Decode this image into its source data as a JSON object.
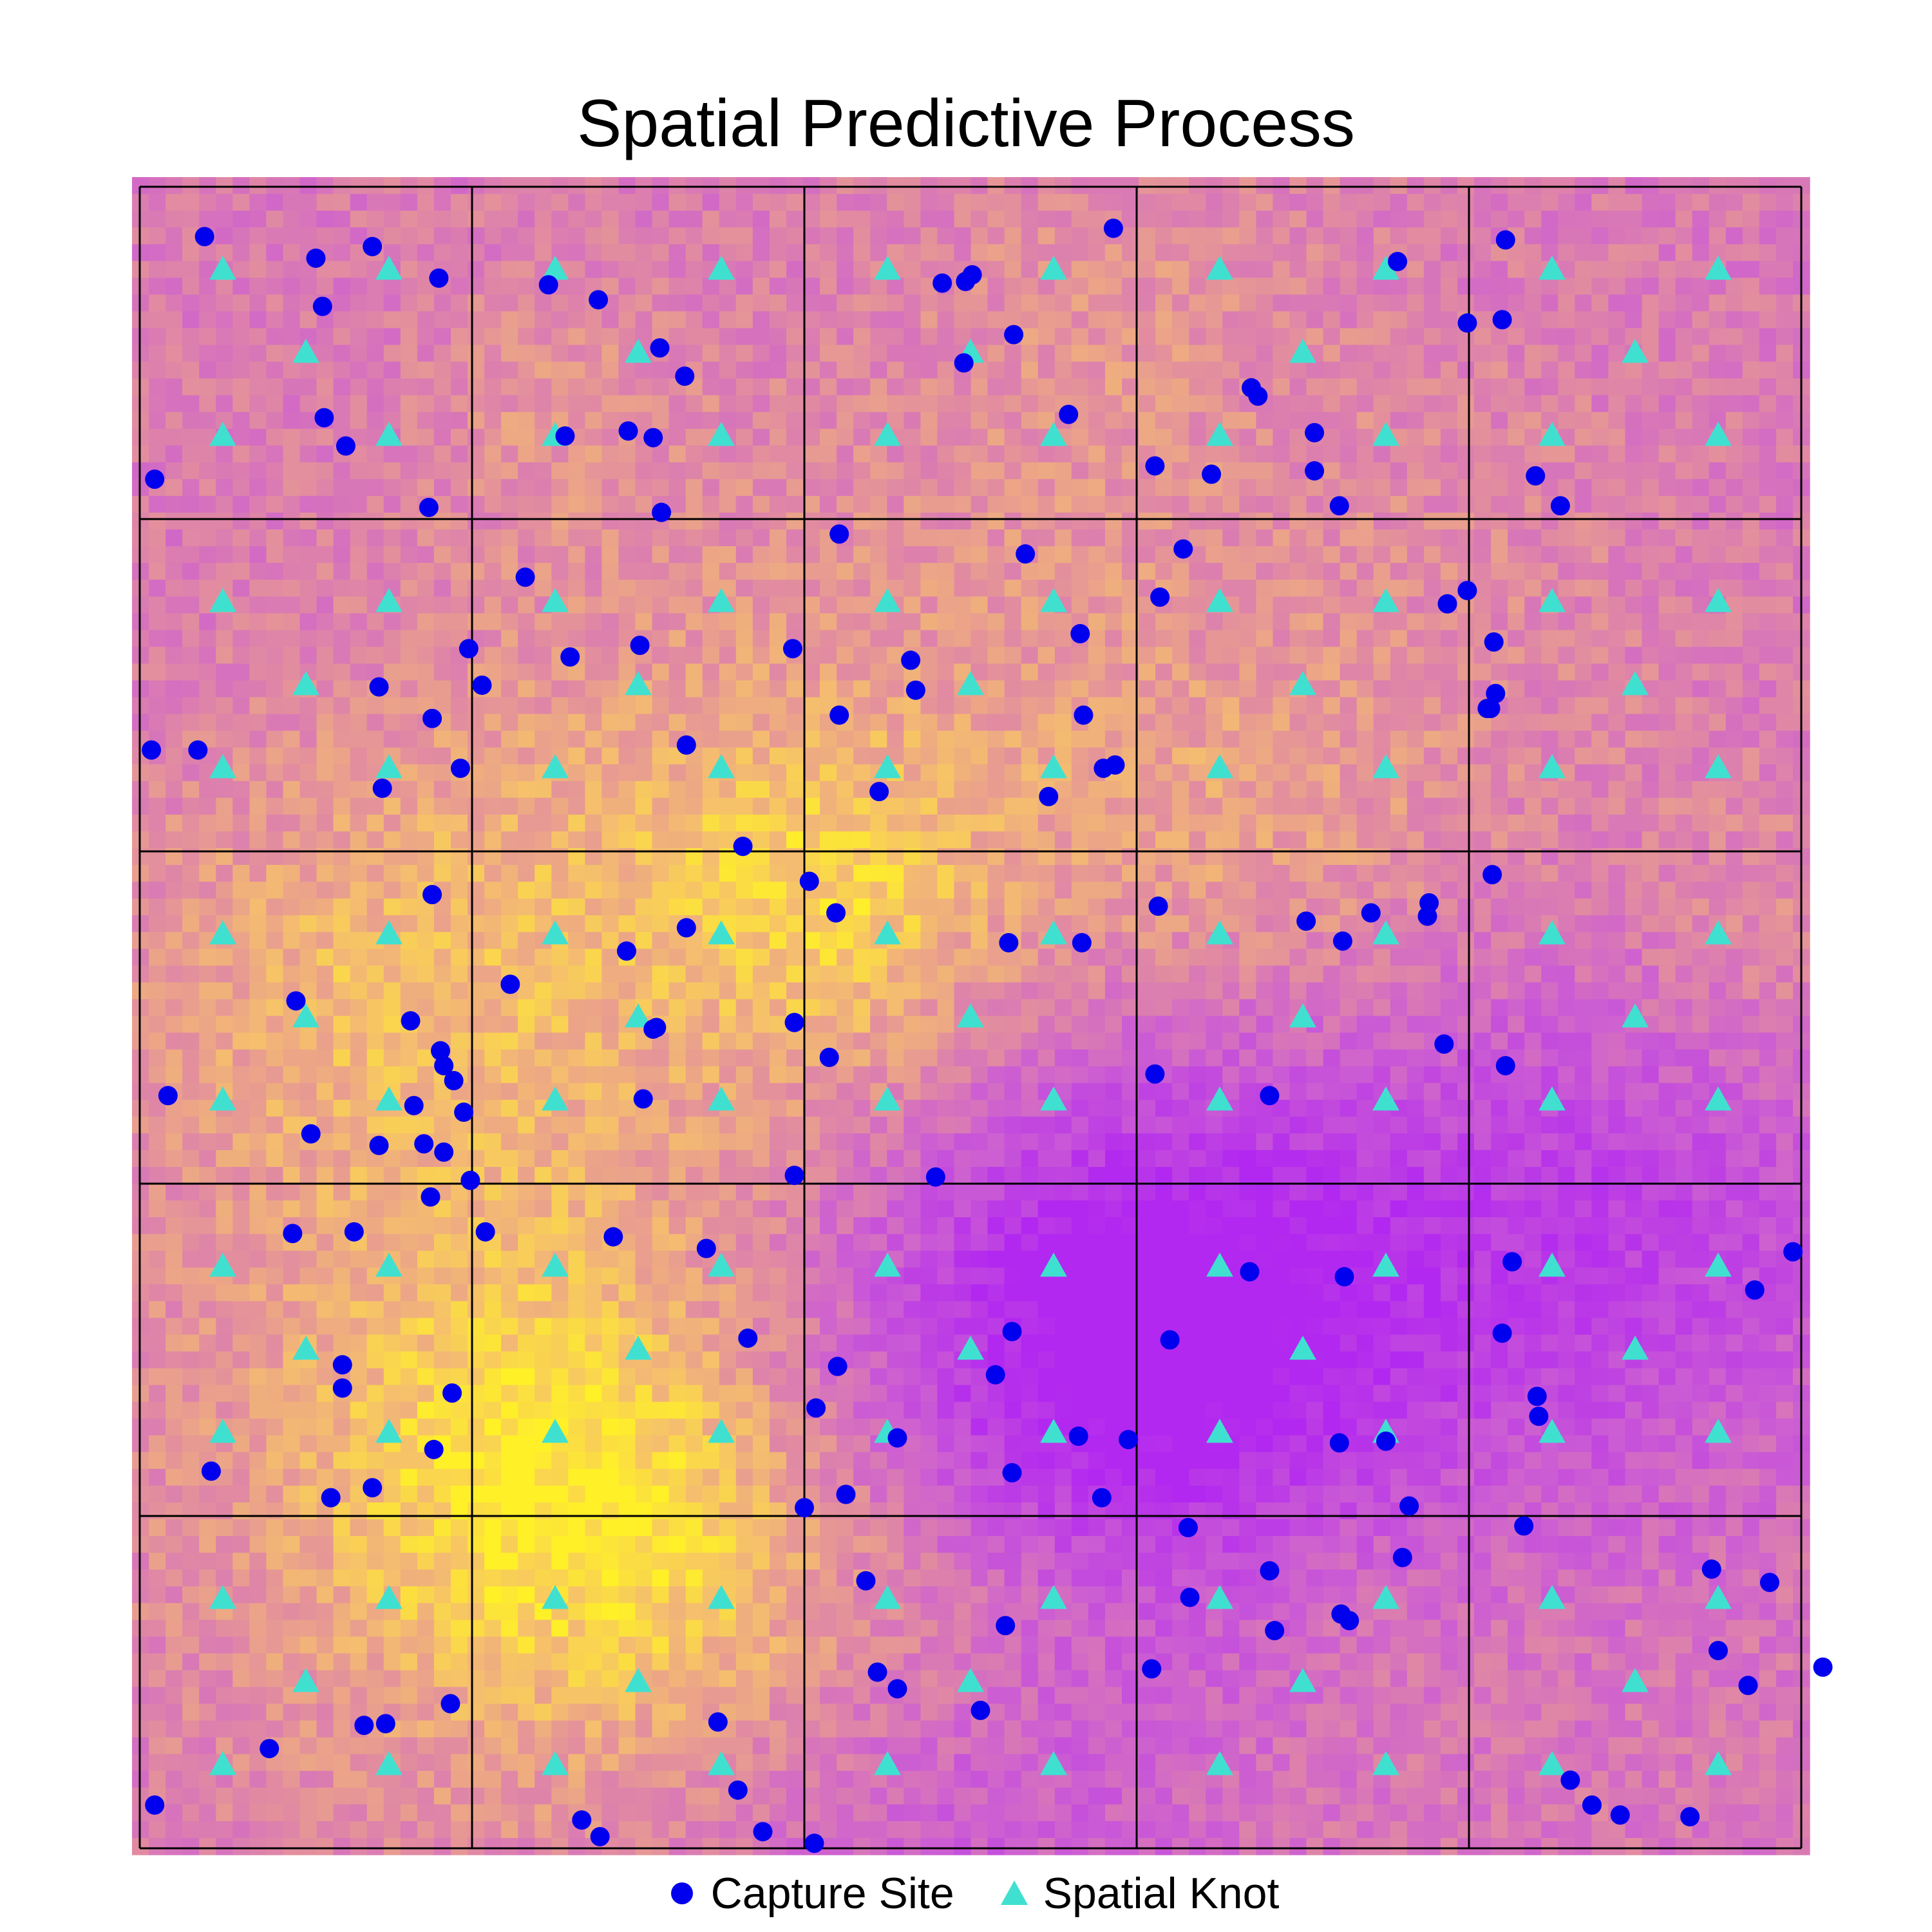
{
  "chart_data": {
    "type": "scatter",
    "title": "Spatial Predictive Process",
    "xlabel": "",
    "ylabel": "",
    "xlim": [
      0,
      100
    ],
    "ylim": [
      0,
      100
    ],
    "grid": "5x5 block lines",
    "background": "random spatial field raster (magenta to yellow, plasma palette)",
    "legend_position": "bottom",
    "colors": {
      "capture_site": "#0000ee",
      "spatial_knot": "#40e0d0",
      "grid_line": "#000000"
    },
    "series": [
      {
        "name": "Capture Site",
        "marker": "circle",
        "color": "#0000ee",
        "points": [
          [
            3.9,
            97.0
          ],
          [
            10.6,
            95.7
          ],
          [
            11.0,
            92.8
          ],
          [
            14.0,
            96.4
          ],
          [
            18.0,
            94.5
          ],
          [
            11.1,
            86.1
          ],
          [
            12.4,
            84.4
          ],
          [
            17.4,
            80.7
          ],
          [
            0.9,
            82.4
          ],
          [
            24.6,
            94.1
          ],
          [
            27.6,
            93.2
          ],
          [
            31.3,
            90.3
          ],
          [
            32.8,
            88.6
          ],
          [
            25.6,
            85.0
          ],
          [
            30.9,
            84.9
          ],
          [
            29.4,
            85.3
          ],
          [
            23.2,
            76.5
          ],
          [
            31.4,
            80.4
          ],
          [
            42.1,
            79.1
          ],
          [
            48.3,
            94.2
          ],
          [
            49.7,
            94.3
          ],
          [
            50.1,
            94.7
          ],
          [
            49.6,
            89.4
          ],
          [
            52.6,
            91.1
          ],
          [
            55.9,
            86.3
          ],
          [
            53.3,
            77.9
          ],
          [
            58.6,
            97.5
          ],
          [
            61.1,
            83.2
          ],
          [
            64.5,
            82.7
          ],
          [
            66.9,
            87.9
          ],
          [
            70.7,
            85.2
          ],
          [
            70.7,
            82.9
          ],
          [
            72.2,
            80.8
          ],
          [
            67.3,
            87.4
          ],
          [
            75.7,
            95.5
          ],
          [
            82.2,
            96.8
          ],
          [
            79.9,
            91.8
          ],
          [
            82.0,
            92.0
          ],
          [
            84.0,
            82.6
          ],
          [
            85.5,
            80.8
          ],
          [
            0.7,
            66.1
          ],
          [
            3.5,
            66.1
          ],
          [
            14.4,
            69.9
          ],
          [
            17.6,
            68.0
          ],
          [
            14.6,
            63.8
          ],
          [
            17.6,
            57.4
          ],
          [
            19.3,
            65.0
          ],
          [
            19.8,
            72.2
          ],
          [
            20.6,
            70.0
          ],
          [
            25.9,
            71.7
          ],
          [
            30.1,
            72.4
          ],
          [
            39.3,
            72.2
          ],
          [
            32.9,
            66.4
          ],
          [
            40.3,
            58.2
          ],
          [
            46.7,
            69.7
          ],
          [
            46.4,
            71.5
          ],
          [
            44.5,
            63.6
          ],
          [
            42.1,
            68.2
          ],
          [
            56.6,
            73.1
          ],
          [
            56.8,
            68.2
          ],
          [
            61.3,
            56.7
          ],
          [
            58.0,
            65.0
          ],
          [
            54.7,
            63.3
          ],
          [
            58.7,
            65.2
          ],
          [
            62.8,
            78.2
          ],
          [
            61.4,
            75.3
          ],
          [
            77.5,
            56.1
          ],
          [
            77.6,
            56.9
          ],
          [
            61.1,
            46.6
          ],
          [
            79.9,
            75.7
          ],
          [
            78.7,
            74.9
          ],
          [
            81.5,
            72.6
          ],
          [
            81.6,
            69.5
          ],
          [
            81.3,
            68.6
          ],
          [
            81.1,
            68.6
          ],
          [
            1.7,
            45.3
          ],
          [
            9.4,
            51.0
          ],
          [
            16.3,
            49.8
          ],
          [
            18.1,
            48.0
          ],
          [
            18.9,
            46.2
          ],
          [
            18.3,
            47.1
          ],
          [
            16.5,
            44.7
          ],
          [
            17.1,
            42.4
          ],
          [
            19.5,
            44.3
          ],
          [
            36.3,
            60.3
          ],
          [
            52.3,
            54.5
          ],
          [
            70.2,
            55.8
          ],
          [
            39.4,
            49.7
          ],
          [
            56.7,
            54.5
          ],
          [
            68.0,
            45.3
          ],
          [
            32.9,
            55.4
          ],
          [
            30.9,
            49.3
          ],
          [
            30.3,
            45.1
          ],
          [
            41.9,
            56.3
          ],
          [
            41.5,
            47.6
          ],
          [
            47.9,
            40.4
          ],
          [
            74.1,
            56.3
          ],
          [
            72.4,
            54.6
          ],
          [
            78.5,
            48.4
          ],
          [
            82.2,
            47.1
          ],
          [
            81.4,
            58.6
          ],
          [
            22.3,
            52.0
          ],
          [
            29.3,
            54.0
          ],
          [
            31.1,
            49.4
          ],
          [
            39.4,
            40.5
          ],
          [
            34.1,
            36.1
          ],
          [
            28.5,
            36.8
          ],
          [
            20.8,
            37.1
          ],
          [
            19.9,
            40.2
          ],
          [
            14.4,
            42.3
          ],
          [
            12.9,
            37.1
          ],
          [
            18.3,
            41.9
          ],
          [
            17.5,
            39.2
          ],
          [
            9.2,
            37.0
          ],
          [
            17.7,
            24.0
          ],
          [
            18.8,
            27.4
          ],
          [
            12.2,
            29.1
          ],
          [
            14.0,
            21.7
          ],
          [
            10.3,
            43.0
          ],
          [
            0.9,
            2.6
          ],
          [
            7.8,
            6.0
          ],
          [
            27.7,
            0.7
          ],
          [
            13.5,
            7.4
          ],
          [
            18.7,
            8.7
          ],
          [
            12.2,
            27.7
          ],
          [
            11.5,
            21.1
          ],
          [
            34.8,
            7.6
          ],
          [
            51.5,
            28.5
          ],
          [
            42.0,
            29.0
          ],
          [
            40.7,
            26.5
          ],
          [
            45.6,
            9.6
          ],
          [
            52.5,
            31.1
          ],
          [
            45.6,
            24.7
          ],
          [
            42.5,
            21.3
          ],
          [
            52.5,
            22.6
          ],
          [
            40.0,
            20.5
          ],
          [
            36.6,
            30.7
          ],
          [
            43.7,
            16.1
          ],
          [
            52.1,
            13.4
          ],
          [
            56.5,
            24.8
          ],
          [
            59.5,
            24.6
          ],
          [
            62.0,
            30.6
          ],
          [
            63.1,
            19.3
          ],
          [
            63.2,
            15.1
          ],
          [
            68.3,
            13.1
          ],
          [
            72.2,
            24.4
          ],
          [
            57.9,
            21.1
          ],
          [
            66.8,
            34.7
          ],
          [
            72.5,
            34.4
          ],
          [
            82.6,
            35.3
          ],
          [
            82.0,
            31.0
          ],
          [
            84.2,
            26.0
          ],
          [
            84.1,
            27.2
          ],
          [
            76.4,
            20.6
          ],
          [
            83.3,
            19.4
          ],
          [
            72.8,
            13.7
          ],
          [
            97.2,
            33.6
          ],
          [
            99.5,
            35.9
          ],
          [
            75.0,
            24.5
          ],
          [
            72.3,
            14.1
          ],
          [
            76.0,
            17.5
          ],
          [
            68.0,
            16.7
          ],
          [
            4.3,
            22.7
          ],
          [
            14.8,
            7.5
          ],
          [
            26.6,
            1.7
          ],
          [
            36.0,
            3.5
          ],
          [
            37.5,
            1.0
          ],
          [
            44.4,
            10.6
          ],
          [
            40.6,
            0.3
          ],
          [
            50.6,
            8.3
          ],
          [
            60.9,
            10.8
          ],
          [
            86.1,
            4.1
          ],
          [
            87.4,
            2.6
          ],
          [
            89.1,
            2.0
          ],
          [
            93.3,
            1.9
          ],
          [
            94.6,
            16.8
          ],
          [
            96.8,
            9.8
          ],
          [
            95.0,
            11.9
          ],
          [
            101.3,
            10.9
          ],
          [
            98.1,
            16.0
          ]
        ]
      },
      {
        "name": "Spatial Knot",
        "marker": "triangle",
        "color": "#40e0d0",
        "points": [
          [
            5,
            95
          ],
          [
            15,
            95
          ],
          [
            10,
            90
          ],
          [
            5,
            85
          ],
          [
            15,
            85
          ],
          [
            25,
            95
          ],
          [
            35,
            95
          ],
          [
            30,
            90
          ],
          [
            25,
            85
          ],
          [
            35,
            85
          ],
          [
            45,
            95
          ],
          [
            55,
            95
          ],
          [
            50,
            90
          ],
          [
            45,
            85
          ],
          [
            55,
            85
          ],
          [
            65,
            95
          ],
          [
            75,
            95
          ],
          [
            70,
            90
          ],
          [
            65,
            85
          ],
          [
            75,
            85
          ],
          [
            85,
            95
          ],
          [
            95,
            95
          ],
          [
            90,
            90
          ],
          [
            85,
            85
          ],
          [
            95,
            85
          ],
          [
            5,
            75
          ],
          [
            15,
            75
          ],
          [
            10,
            70
          ],
          [
            5,
            65
          ],
          [
            15,
            65
          ],
          [
            25,
            75
          ],
          [
            35,
            75
          ],
          [
            30,
            70
          ],
          [
            25,
            65
          ],
          [
            35,
            65
          ],
          [
            45,
            75
          ],
          [
            55,
            75
          ],
          [
            50,
            70
          ],
          [
            45,
            65
          ],
          [
            55,
            65
          ],
          [
            65,
            75
          ],
          [
            75,
            75
          ],
          [
            70,
            70
          ],
          [
            65,
            65
          ],
          [
            75,
            65
          ],
          [
            85,
            75
          ],
          [
            95,
            75
          ],
          [
            90,
            70
          ],
          [
            85,
            65
          ],
          [
            95,
            65
          ],
          [
            5,
            55
          ],
          [
            15,
            55
          ],
          [
            10,
            50
          ],
          [
            5,
            45
          ],
          [
            15,
            45
          ],
          [
            25,
            55
          ],
          [
            35,
            55
          ],
          [
            30,
            50
          ],
          [
            25,
            45
          ],
          [
            35,
            45
          ],
          [
            45,
            55
          ],
          [
            55,
            55
          ],
          [
            50,
            50
          ],
          [
            45,
            45
          ],
          [
            55,
            45
          ],
          [
            65,
            55
          ],
          [
            75,
            55
          ],
          [
            70,
            50
          ],
          [
            65,
            45
          ],
          [
            75,
            45
          ],
          [
            85,
            55
          ],
          [
            95,
            55
          ],
          [
            90,
            50
          ],
          [
            85,
            45
          ],
          [
            95,
            45
          ],
          [
            5,
            35
          ],
          [
            15,
            35
          ],
          [
            10,
            30
          ],
          [
            5,
            25
          ],
          [
            15,
            25
          ],
          [
            25,
            35
          ],
          [
            35,
            35
          ],
          [
            30,
            30
          ],
          [
            25,
            25
          ],
          [
            35,
            25
          ],
          [
            45,
            35
          ],
          [
            55,
            35
          ],
          [
            50,
            30
          ],
          [
            45,
            25
          ],
          [
            55,
            25
          ],
          [
            65,
            35
          ],
          [
            75,
            35
          ],
          [
            70,
            30
          ],
          [
            65,
            25
          ],
          [
            75,
            25
          ],
          [
            85,
            35
          ],
          [
            95,
            35
          ],
          [
            90,
            30
          ],
          [
            85,
            25
          ],
          [
            95,
            25
          ],
          [
            5,
            15
          ],
          [
            15,
            15
          ],
          [
            10,
            10
          ],
          [
            5,
            5
          ],
          [
            15,
            5
          ],
          [
            25,
            15
          ],
          [
            35,
            15
          ],
          [
            30,
            10
          ],
          [
            25,
            5
          ],
          [
            35,
            5
          ],
          [
            45,
            15
          ],
          [
            55,
            15
          ],
          [
            50,
            10
          ],
          [
            45,
            5
          ],
          [
            55,
            5
          ],
          [
            65,
            15
          ],
          [
            75,
            15
          ],
          [
            70,
            10
          ],
          [
            65,
            5
          ],
          [
            75,
            5
          ],
          [
            85,
            15
          ],
          [
            95,
            15
          ],
          [
            90,
            10
          ],
          [
            85,
            5
          ],
          [
            95,
            5
          ]
        ]
      }
    ]
  },
  "legend": {
    "capture_site_label": "Capture Site",
    "spatial_knot_label": "Spatial Knot"
  }
}
